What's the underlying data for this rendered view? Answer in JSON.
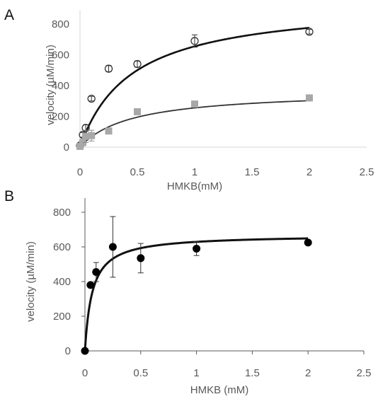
{
  "panels": [
    {
      "label": "A",
      "style": "light",
      "chart_data": {
        "type": "scatter",
        "xlabel": "HMKB(mM)",
        "ylabel": "velocity (µM/min)",
        "xlim": [
          0,
          2.5
        ],
        "ylim": [
          0,
          800
        ],
        "xticks": [
          0,
          0.5,
          1,
          1.5,
          2,
          2.5
        ],
        "xtick_labels": [
          "0",
          "0.5",
          "1",
          "1.5",
          "2",
          "2.5"
        ],
        "yticks": [
          0,
          200,
          400,
          600,
          800
        ],
        "ytick_labels": [
          "0",
          "200",
          "400",
          "600",
          "800"
        ],
        "grid": false,
        "legend": "none",
        "series": [
          {
            "marker": "open-circle",
            "color": "#333333",
            "points": [
              {
                "x": 0.0,
                "y": 10
              },
              {
                "x": 0.025,
                "y": 80,
                "err": 15
              },
              {
                "x": 0.05,
                "y": 125,
                "err": 20
              },
              {
                "x": 0.1,
                "y": 315,
                "err": 15
              },
              {
                "x": 0.25,
                "y": 510,
                "err": 20
              },
              {
                "x": 0.5,
                "y": 540,
                "err": 20
              },
              {
                "x": 1.0,
                "y": 690,
                "err": 40
              },
              {
                "x": 2.0,
                "y": 750,
                "err": 15
              }
            ],
            "fit": {
              "model": "michaelis-menten",
              "vmax": 950,
              "km": 0.45,
              "color": "#111111"
            }
          },
          {
            "marker": "filled-square",
            "color": "#a8a8a8",
            "points": [
              {
                "x": 0.0,
                "y": 5
              },
              {
                "x": 0.025,
                "y": 30
              },
              {
                "x": 0.05,
                "y": 70,
                "err": 40
              },
              {
                "x": 0.1,
                "y": 75,
                "err": 35
              },
              {
                "x": 0.25,
                "y": 105
              },
              {
                "x": 0.5,
                "y": 230
              },
              {
                "x": 1.0,
                "y": 280
              },
              {
                "x": 2.0,
                "y": 320
              }
            ],
            "fit": {
              "model": "michaelis-menten",
              "vmax": 370,
              "km": 0.45,
              "color": "#333333"
            }
          }
        ]
      }
    },
    {
      "label": "B",
      "style": "dark",
      "chart_data": {
        "type": "scatter",
        "xlabel": "HMKB (mM)",
        "ylabel": "velocity (µM/min)",
        "xlim": [
          0,
          2.5
        ],
        "ylim": [
          0,
          800
        ],
        "xticks": [
          0,
          0.5,
          1,
          1.5,
          2,
          2.5
        ],
        "xtick_labels": [
          "0",
          "0.5",
          "1",
          "1.5",
          "2",
          "2.5"
        ],
        "yticks": [
          0,
          200,
          400,
          600,
          800
        ],
        "ytick_labels": [
          "0",
          "200",
          "400",
          "600",
          "800"
        ],
        "grid": false,
        "legend": "none",
        "series": [
          {
            "marker": "filled-circle",
            "color": "#000000",
            "points": [
              {
                "x": 0.0,
                "y": 0
              },
              {
                "x": 0.05,
                "y": 380
              },
              {
                "x": 0.1,
                "y": 455,
                "err": 55
              },
              {
                "x": 0.25,
                "y": 600,
                "err": 175
              },
              {
                "x": 0.5,
                "y": 535,
                "err": 85
              },
              {
                "x": 1.0,
                "y": 590,
                "err": 40
              },
              {
                "x": 2.0,
                "y": 625
              }
            ],
            "fit": {
              "model": "michaelis-menten",
              "vmax": 670,
              "km": 0.065,
              "color": "#111111"
            }
          }
        ]
      }
    }
  ]
}
